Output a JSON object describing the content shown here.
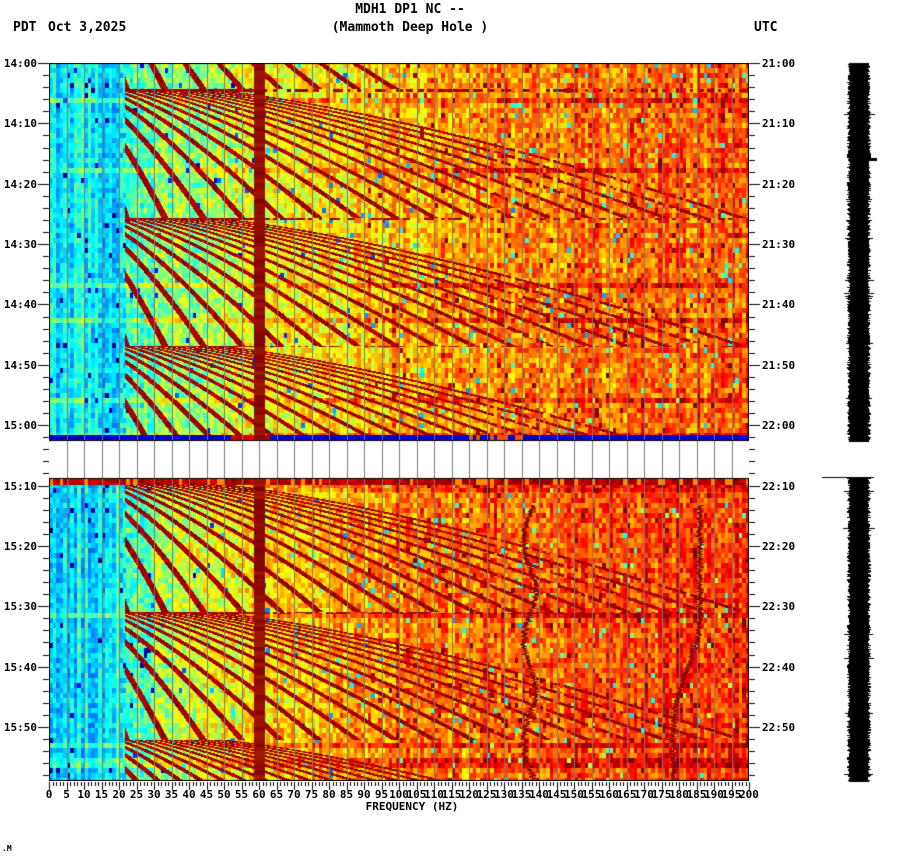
{
  "header": {
    "tz_left": "PDT",
    "date": "Oct 3,2025",
    "title_line1": "MDH1 DP1 NC --",
    "title_line2": "(Mammoth Deep Hole )",
    "tz_right": "UTC"
  },
  "corner_mark": ".M",
  "chart_data": {
    "type": "heatmap",
    "subtype": "seismic spectrogram, two stacked time panels with data gap between them",
    "station": "MDH1 DP1 NC --",
    "station_name": "(Mammoth Deep Hole )",
    "xlabel": "FREQUENCY (HZ)",
    "x_range_hz": [
      0,
      200
    ],
    "x_major_tick_step_hz": 5,
    "x_minor_tick_step_hz": 1,
    "grid": "vertical gray gridlines every 5 Hz, drawn over spectrogram and through the white data gap",
    "colormap": "jet (cyan/blue at low power through green, yellow, orange to dark red at saturation)",
    "time_axis": {
      "left_timezone": "PDT",
      "right_timezone": "UTC",
      "major_step_min": 10,
      "minor_step_min": 2,
      "left_labels": [
        "14:00",
        "14:10",
        "14:20",
        "14:30",
        "14:40",
        "14:50",
        "15:00",
        "15:10",
        "15:20",
        "15:30",
        "15:40",
        "15:50"
      ],
      "right_labels": [
        "21:00",
        "21:10",
        "21:20",
        "21:30",
        "21:40",
        "21:50",
        "22:00",
        "22:10",
        "22:20",
        "22:30",
        "22:40",
        "22:50"
      ]
    },
    "freq_axis": {
      "label": "FREQUENCY (HZ)",
      "tick_labels": [
        "0",
        "5",
        "10",
        "15",
        "20",
        "25",
        "30",
        "35",
        "40",
        "45",
        "50",
        "55",
        "60",
        "65",
        "70",
        "75",
        "80",
        "85",
        "90",
        "95",
        "100",
        "105",
        "110",
        "115",
        "120",
        "125",
        "130",
        "135",
        "140",
        "145",
        "150",
        "155",
        "160",
        "165",
        "170",
        "175",
        "180",
        "185",
        "190",
        "195",
        "200"
      ]
    },
    "panels": [
      {
        "pdt_start": "14:00",
        "pdt_end": "15:02",
        "utc_start": "21:00",
        "utc_end": "22:02",
        "notes": "ends with a dark blue low-power row; repeating dark-red harmonic fan structures; quiet cyan band below ~20 Hz"
      },
      {
        "pdt_start": "15:09",
        "pdt_end": "15:59",
        "utc_start": "22:09",
        "22_utc_end": "22:59",
        "notes": "begins with a saturated dark-red broadband row; overall hotter (redder) than panel 1; wavy narrowband tones near 137 Hz and ~180-186 Hz"
      }
    ],
    "data_gap": {
      "pdt_start": "15:02",
      "pdt_end": "15:09",
      "appearance": "white band, gridlines continue"
    },
    "features": {
      "mains_hum_line_hz": 60,
      "harmonic_fan_onset_minutes_after_1400": [
        -17.2,
        4.1,
        25.3,
        46.4,
        69.3,
        90.6,
        111.6
      ],
      "fan_duration_min": 21.5,
      "fan_fundamental_hz_start": 2.2,
      "fan_fundamental_hz_end": 11.0,
      "fan_harmonics_max": 18,
      "first_fan_harmonics_max": 9,
      "narrowband_tones_panel2_hz": [
        137.3,
        186
      ],
      "amplitude_trace": "fully clipped (solid black) vertical helicorder trace at right edge, broken during the data gap with a flat pen line at gap end"
    },
    "colors": {
      "saturated": "#800000",
      "gridline": "#7a7a7a",
      "frame": "#000000",
      "gap_background": "#ffffff",
      "low_power_row": "#0000a8",
      "trace": "#000000"
    }
  }
}
